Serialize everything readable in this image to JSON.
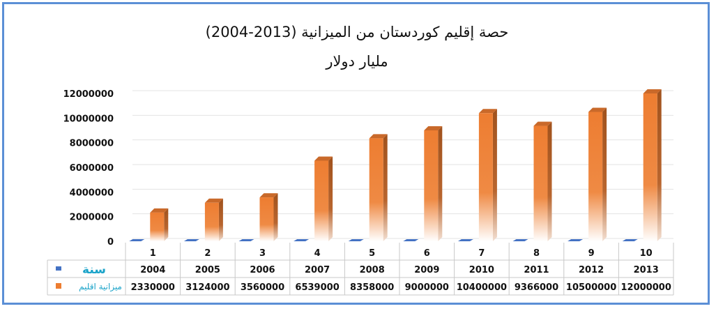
{
  "chart_data": {
    "type": "bar",
    "title": "حصة إقليم كوردستان من الميزانية (2013-2004)",
    "subtitle": "مليار دولار",
    "categories": [
      "1",
      "2",
      "3",
      "4",
      "5",
      "6",
      "7",
      "8",
      "9",
      "10"
    ],
    "series": [
      {
        "name": "سنة",
        "color": "#4472c4",
        "values": [
          2004,
          2005,
          2006,
          2007,
          2008,
          2009,
          2010,
          2011,
          2012,
          2013
        ]
      },
      {
        "name": "ميزانية اقليم",
        "color": "#ed7d31",
        "values": [
          2330000,
          3124000,
          3560000,
          6539000,
          8358000,
          9000000,
          10400000,
          9366000,
          10500000,
          12000000
        ]
      }
    ],
    "y_ticks": [
      "0",
      "2000000",
      "4000000",
      "6000000",
      "8000000",
      "10000000",
      "12000000"
    ],
    "ylim": [
      0,
      12000000
    ],
    "grid": true,
    "data_table": true,
    "legend": "left-of-table"
  }
}
